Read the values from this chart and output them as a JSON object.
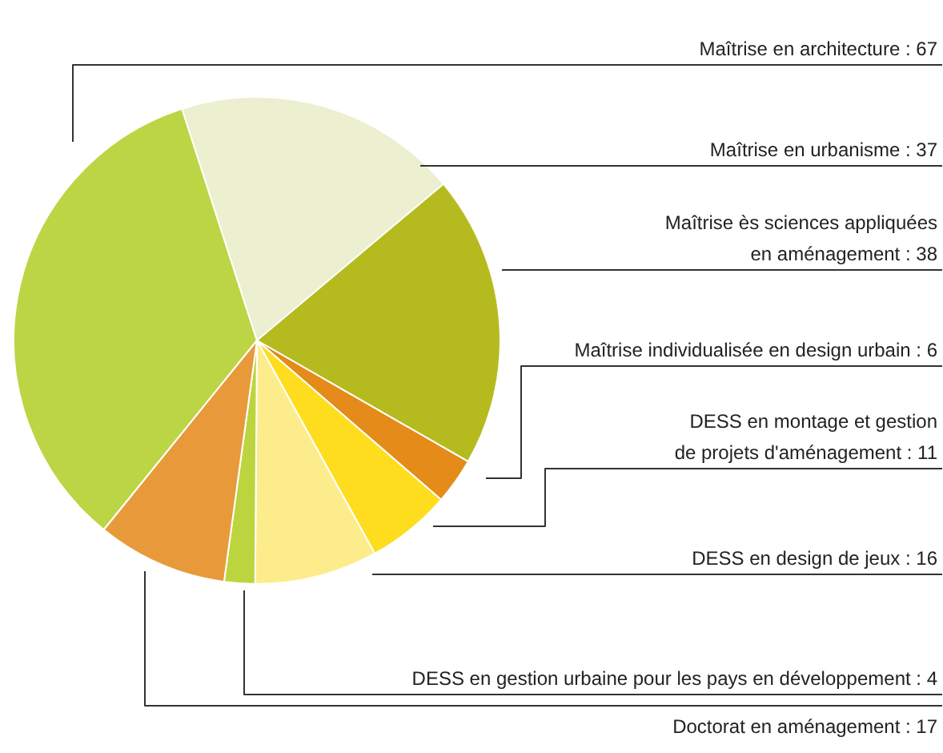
{
  "chart_data": {
    "type": "pie",
    "categories": [
      "Maîtrise en architecture : 67",
      "Maîtrise en urbanisme : 37",
      "Maîtrise ès sciences appliquées en aménagement : 38",
      "Maîtrise individualisée en design urbain : 6",
      "DESS en montage et gestion de projets d'aménagement : 11",
      "DESS en design de jeux : 16",
      "DESS en gestion urbaine pour les pays en développement : 4",
      "Doctorat en aménagement : 17"
    ],
    "values": [
      67,
      37,
      38,
      6,
      11,
      16,
      4,
      17
    ],
    "colors": [
      "#bcd544",
      "#ecefd0",
      "#b5bb1e",
      "#e48b1a",
      "#fedd1f",
      "#fdec8c",
      "#bcd53f",
      "#e89a3b"
    ]
  }
}
